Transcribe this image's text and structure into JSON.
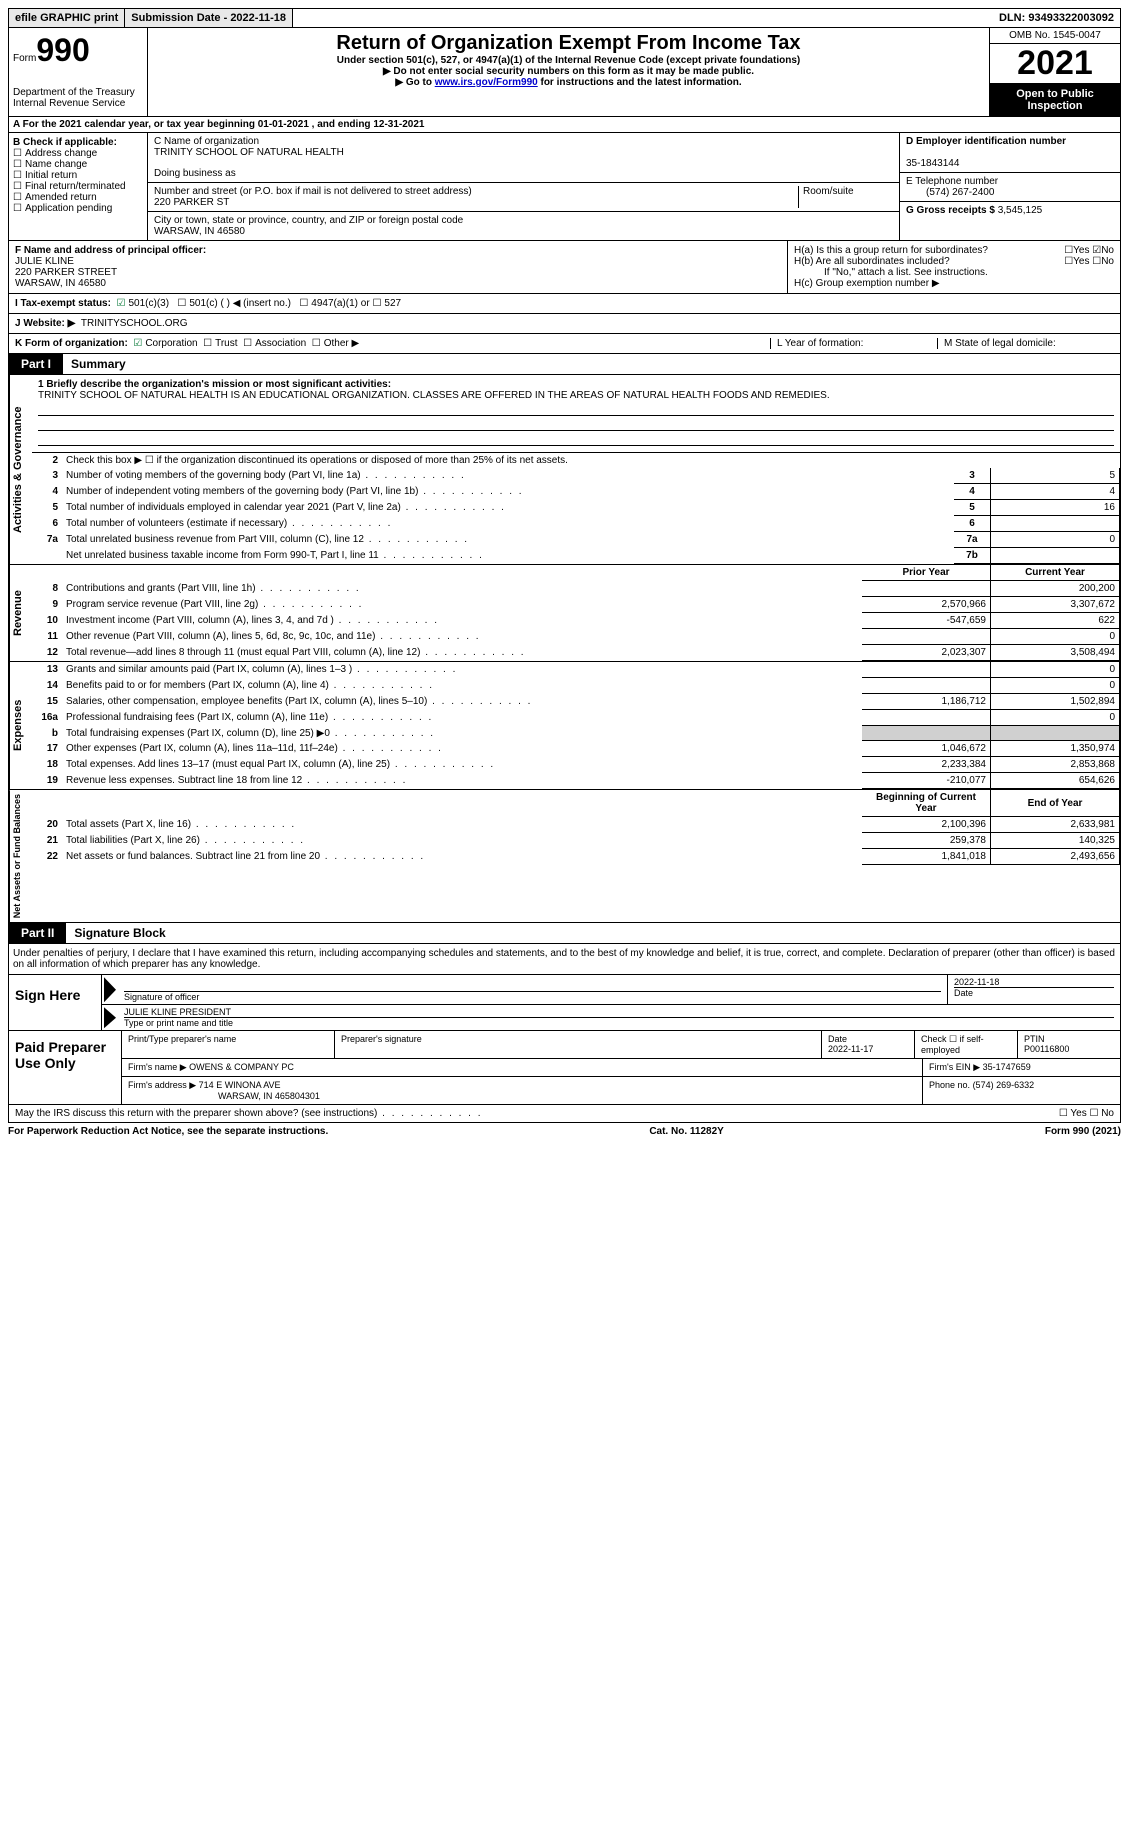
{
  "topbar": {
    "efile": "efile GRAPHIC print",
    "submission_label": "Submission Date - 2022-11-18",
    "dln": "DLN: 93493322003092"
  },
  "header": {
    "form_label": "Form",
    "form_number": "990",
    "dept": "Department of the Treasury",
    "irs": "Internal Revenue Service",
    "title": "Return of Organization Exempt From Income Tax",
    "sub1": "Under section 501(c), 527, or 4947(a)(1) of the Internal Revenue Code (except private foundations)",
    "sub2": "▶ Do not enter social security numbers on this form as it may be made public.",
    "sub3_pre": "▶ Go to ",
    "sub3_link": "www.irs.gov/Form990",
    "sub3_post": " for instructions and the latest information.",
    "omb": "OMB No. 1545-0047",
    "year": "2021",
    "open": "Open to Public Inspection"
  },
  "lineA": "A For the 2021 calendar year, or tax year beginning 01-01-2021    , and ending 12-31-2021",
  "blockB": {
    "label": "B Check if applicable:",
    "opts": [
      "Address change",
      "Name change",
      "Initial return",
      "Final return/terminated",
      "Amended return",
      "Application pending"
    ]
  },
  "blockC": {
    "name_label": "C Name of organization",
    "name": "TRINITY SCHOOL OF NATURAL HEALTH",
    "dba_label": "Doing business as",
    "addr_label": "Number and street (or P.O. box if mail is not delivered to street address)",
    "room_label": "Room/suite",
    "addr": "220 PARKER ST",
    "city_label": "City or town, state or province, country, and ZIP or foreign postal code",
    "city": "WARSAW, IN  46580"
  },
  "blockD": {
    "label": "D Employer identification number",
    "value": "35-1843144"
  },
  "blockE": {
    "label": "E Telephone number",
    "value": "(574) 267-2400"
  },
  "blockG": {
    "label": "G Gross receipts $",
    "value": "3,545,125"
  },
  "blockF": {
    "label": "F Name and address of principal officer:",
    "name": "JULIE KLINE",
    "addr1": "220 PARKER STREET",
    "addr2": "WARSAW, IN  46580"
  },
  "blockH": {
    "ha": "H(a)  Is this a group return for subordinates?",
    "hb": "H(b)  Are all subordinates included?",
    "hint": "If \"No,\" attach a list. See instructions.",
    "hc": "H(c)  Group exemption number ▶"
  },
  "taxExempt": {
    "label": "I  Tax-exempt status:",
    "opt1": "501(c)(3)",
    "opt2": "501(c) (   ) ◀ (insert no.)",
    "opt3": "4947(a)(1) or",
    "opt4": "527"
  },
  "website": {
    "label": "J  Website: ▶",
    "value": "TRINITYSCHOOL.ORG"
  },
  "lineK": {
    "label": "K Form of organization:",
    "opts": [
      "Corporation",
      "Trust",
      "Association",
      "Other ▶"
    ],
    "L": "L Year of formation:",
    "M": "M State of legal domicile:"
  },
  "part1": {
    "tab": "Part I",
    "title": "Summary",
    "vlabel_governance": "Activities & Governance",
    "vlabel_revenue": "Revenue",
    "vlabel_expenses": "Expenses",
    "vlabel_netassets": "Net Assets or Fund Balances",
    "mission_label": "1  Briefly describe the organization's mission or most significant activities:",
    "mission": "TRINITY SCHOOL OF NATURAL HEALTH IS AN EDUCATIONAL ORGANIZATION. CLASSES ARE OFFERED IN THE AREAS OF NATURAL HEALTH FOODS AND REMEDIES.",
    "line2": "Check this box ▶ ☐  if the organization discontinued its operations or disposed of more than 25% of its net assets.",
    "governance_rows": [
      {
        "n": "3",
        "desc": "Number of voting members of the governing body (Part VI, line 1a)",
        "box": "3",
        "val": "5"
      },
      {
        "n": "4",
        "desc": "Number of independent voting members of the governing body (Part VI, line 1b)",
        "box": "4",
        "val": "4"
      },
      {
        "n": "5",
        "desc": "Total number of individuals employed in calendar year 2021 (Part V, line 2a)",
        "box": "5",
        "val": "16"
      },
      {
        "n": "6",
        "desc": "Total number of volunteers (estimate if necessary)",
        "box": "6",
        "val": ""
      },
      {
        "n": "7a",
        "desc": "Total unrelated business revenue from Part VIII, column (C), line 12",
        "box": "7a",
        "val": "0"
      },
      {
        "n": "",
        "desc": "Net unrelated business taxable income from Form 990-T, Part I, line 11",
        "box": "7b",
        "val": ""
      }
    ],
    "col_prior": "Prior Year",
    "col_current": "Current Year",
    "revenue_rows": [
      {
        "n": "8",
        "desc": "Contributions and grants (Part VIII, line 1h)",
        "prior": "",
        "curr": "200,200"
      },
      {
        "n": "9",
        "desc": "Program service revenue (Part VIII, line 2g)",
        "prior": "2,570,966",
        "curr": "3,307,672"
      },
      {
        "n": "10",
        "desc": "Investment income (Part VIII, column (A), lines 3, 4, and 7d )",
        "prior": "-547,659",
        "curr": "622"
      },
      {
        "n": "11",
        "desc": "Other revenue (Part VIII, column (A), lines 5, 6d, 8c, 9c, 10c, and 11e)",
        "prior": "",
        "curr": "0"
      },
      {
        "n": "12",
        "desc": "Total revenue—add lines 8 through 11 (must equal Part VIII, column (A), line 12)",
        "prior": "2,023,307",
        "curr": "3,508,494"
      }
    ],
    "expense_rows": [
      {
        "n": "13",
        "desc": "Grants and similar amounts paid (Part IX, column (A), lines 1–3 )",
        "prior": "",
        "curr": "0"
      },
      {
        "n": "14",
        "desc": "Benefits paid to or for members (Part IX, column (A), line 4)",
        "prior": "",
        "curr": "0"
      },
      {
        "n": "15",
        "desc": "Salaries, other compensation, employee benefits (Part IX, column (A), lines 5–10)",
        "prior": "1,186,712",
        "curr": "1,502,894"
      },
      {
        "n": "16a",
        "desc": "Professional fundraising fees (Part IX, column (A), line 11e)",
        "prior": "",
        "curr": "0"
      },
      {
        "n": "b",
        "desc": "Total fundraising expenses (Part IX, column (D), line 25) ▶0",
        "prior": "shade",
        "curr": "shade"
      },
      {
        "n": "17",
        "desc": "Other expenses (Part IX, column (A), lines 11a–11d, 11f–24e)",
        "prior": "1,046,672",
        "curr": "1,350,974"
      },
      {
        "n": "18",
        "desc": "Total expenses. Add lines 13–17 (must equal Part IX, column (A), line 25)",
        "prior": "2,233,384",
        "curr": "2,853,868"
      },
      {
        "n": "19",
        "desc": "Revenue less expenses. Subtract line 18 from line 12",
        "prior": "-210,077",
        "curr": "654,626"
      }
    ],
    "col_begin": "Beginning of Current Year",
    "col_end": "End of Year",
    "netasset_rows": [
      {
        "n": "20",
        "desc": "Total assets (Part X, line 16)",
        "prior": "2,100,396",
        "curr": "2,633,981"
      },
      {
        "n": "21",
        "desc": "Total liabilities (Part X, line 26)",
        "prior": "259,378",
        "curr": "140,325"
      },
      {
        "n": "22",
        "desc": "Net assets or fund balances. Subtract line 21 from line 20",
        "prior": "1,841,018",
        "curr": "2,493,656"
      }
    ]
  },
  "part2": {
    "tab": "Part II",
    "title": "Signature Block",
    "intro": "Under penalties of perjury, I declare that I have examined this return, including accompanying schedules and statements, and to the best of my knowledge and belief, it is true, correct, and complete. Declaration of preparer (other than officer) is based on all information of which preparer has any knowledge."
  },
  "sign": {
    "label": "Sign Here",
    "sig_label": "Signature of officer",
    "date_label": "Date",
    "date": "2022-11-18",
    "name": "JULIE KLINE  PRESIDENT",
    "name_label": "Type or print name and title"
  },
  "preparer": {
    "label": "Paid Preparer Use Only",
    "h1": "Print/Type preparer's name",
    "h2": "Preparer's signature",
    "h3": "Date",
    "date": "2022-11-17",
    "h4": "Check ☐ if self-employed",
    "h5": "PTIN",
    "ptin": "P00116800",
    "firm_label": "Firm's name    ▶",
    "firm": "OWENS & COMPANY PC",
    "ein_label": "Firm's EIN ▶",
    "ein": "35-1747659",
    "addr_label": "Firm's address ▶",
    "addr1": "714 E WINONA AVE",
    "addr2": "WARSAW, IN  465804301",
    "phone_label": "Phone no.",
    "phone": "(574) 269-6332"
  },
  "footer": {
    "discuss": "May the IRS discuss this return with the preparer shown above? (see instructions)",
    "yn": "☐ Yes   ☐ No",
    "paperwork": "For Paperwork Reduction Act Notice, see the separate instructions.",
    "cat": "Cat. No. 11282Y",
    "form": "Form 990 (2021)"
  }
}
